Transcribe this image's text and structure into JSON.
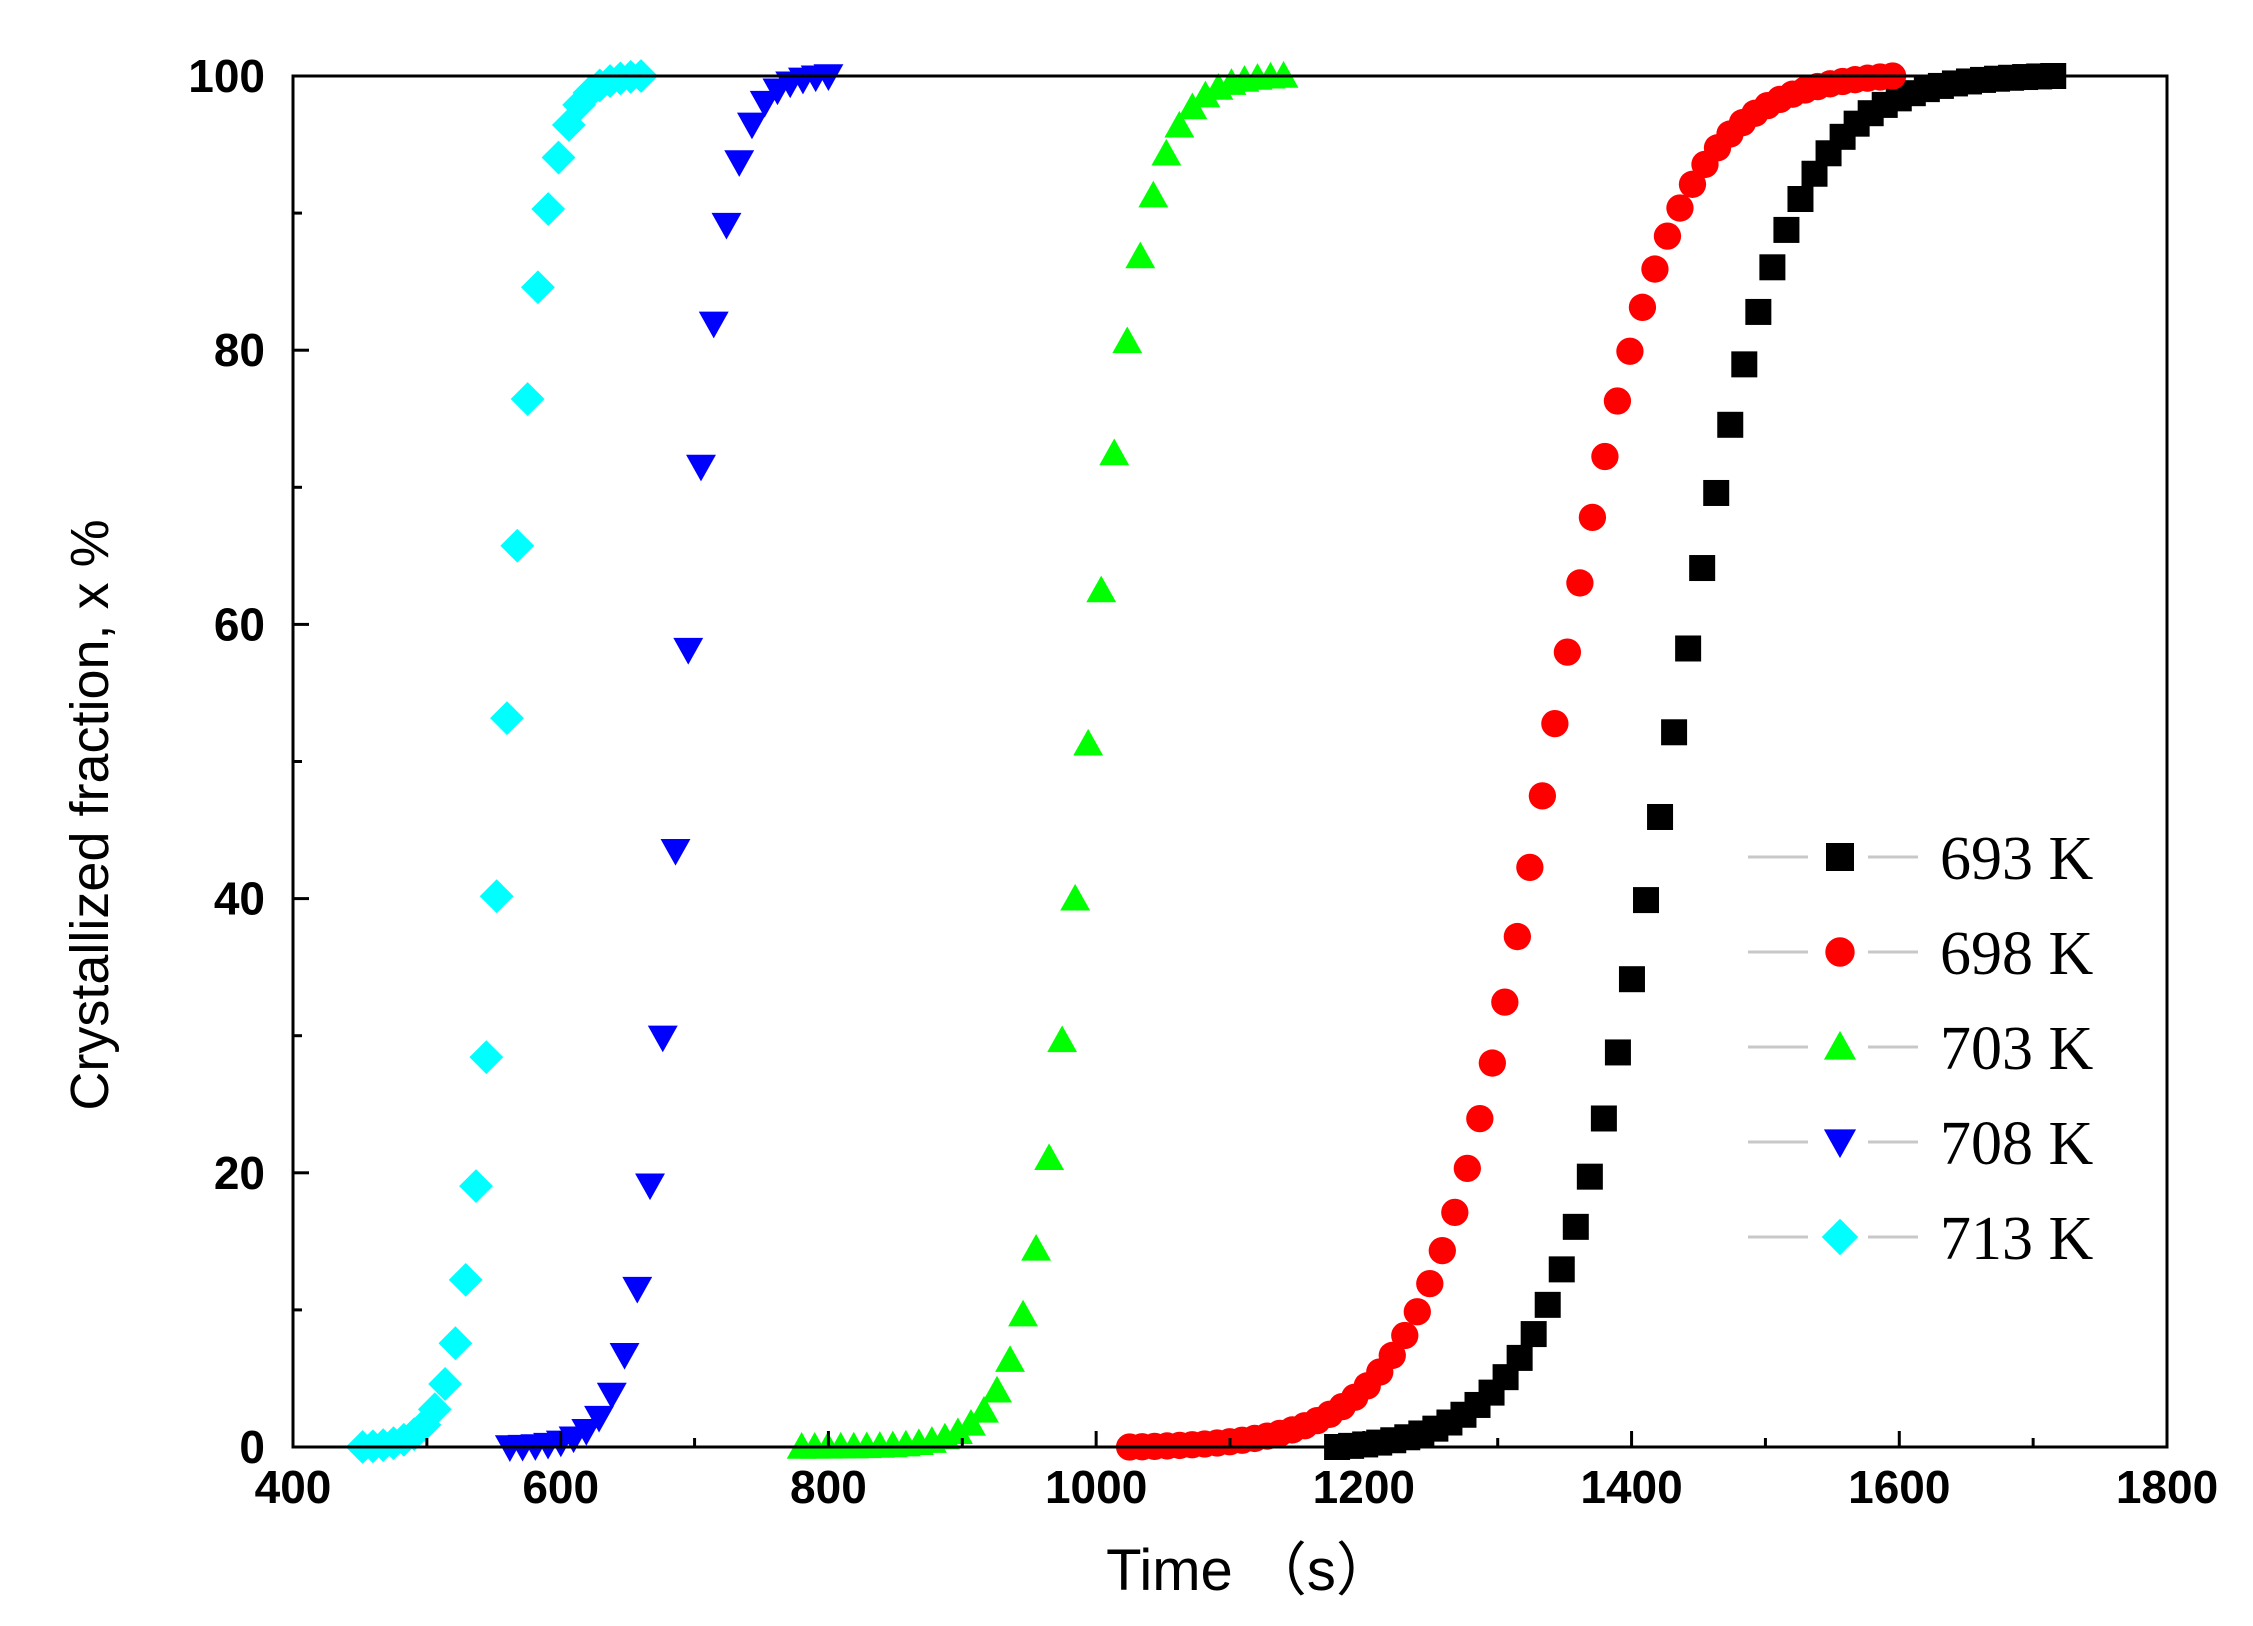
{
  "chart_data": {
    "type": "scatter",
    "title": "",
    "xlabel": "Time （s）",
    "ylabel": "Crystallized fraction, x %",
    "xlim": [
      400,
      1800
    ],
    "ylim": [
      0,
      100
    ],
    "x_ticks": [
      400,
      600,
      800,
      1000,
      1200,
      1400,
      1600,
      1800
    ],
    "y_ticks": [
      0,
      20,
      40,
      60,
      80,
      100
    ],
    "x_tick_labels": [
      "400",
      "600",
      "800",
      "1000",
      "1200",
      "1400",
      "1600",
      "1800"
    ],
    "y_tick_labels": [
      "0",
      "20",
      "40",
      "60",
      "80",
      "100"
    ],
    "grid": false,
    "legend_position": "right",
    "series": [
      {
        "name": "693 K",
        "color": "#000000",
        "marker": "square",
        "t0": 1180,
        "t1": 1715,
        "tmid": 1428,
        "k": 0.0235,
        "n": 52
      },
      {
        "name": "698 K",
        "color": "#ff0000",
        "marker": "circle",
        "t0": 1025,
        "t1": 1595,
        "tmid": 1338,
        "k": 0.0225,
        "n": 62
      },
      {
        "name": "703 K",
        "color": "#00ff00",
        "marker": "triangle-up",
        "t0": 780,
        "t1": 1140,
        "tmid": 993,
        "k": 0.047,
        "n": 38
      },
      {
        "name": "708 K",
        "color": "#0000ff",
        "marker": "triangle-down",
        "t0": 562,
        "t1": 800,
        "tmid": 690,
        "k": 0.062,
        "n": 26
      },
      {
        "name": "713 K",
        "color": "#00ffff",
        "marker": "diamond",
        "t0": 452,
        "t1": 660,
        "tmid": 558,
        "k": 0.068,
        "n": 28
      }
    ]
  }
}
